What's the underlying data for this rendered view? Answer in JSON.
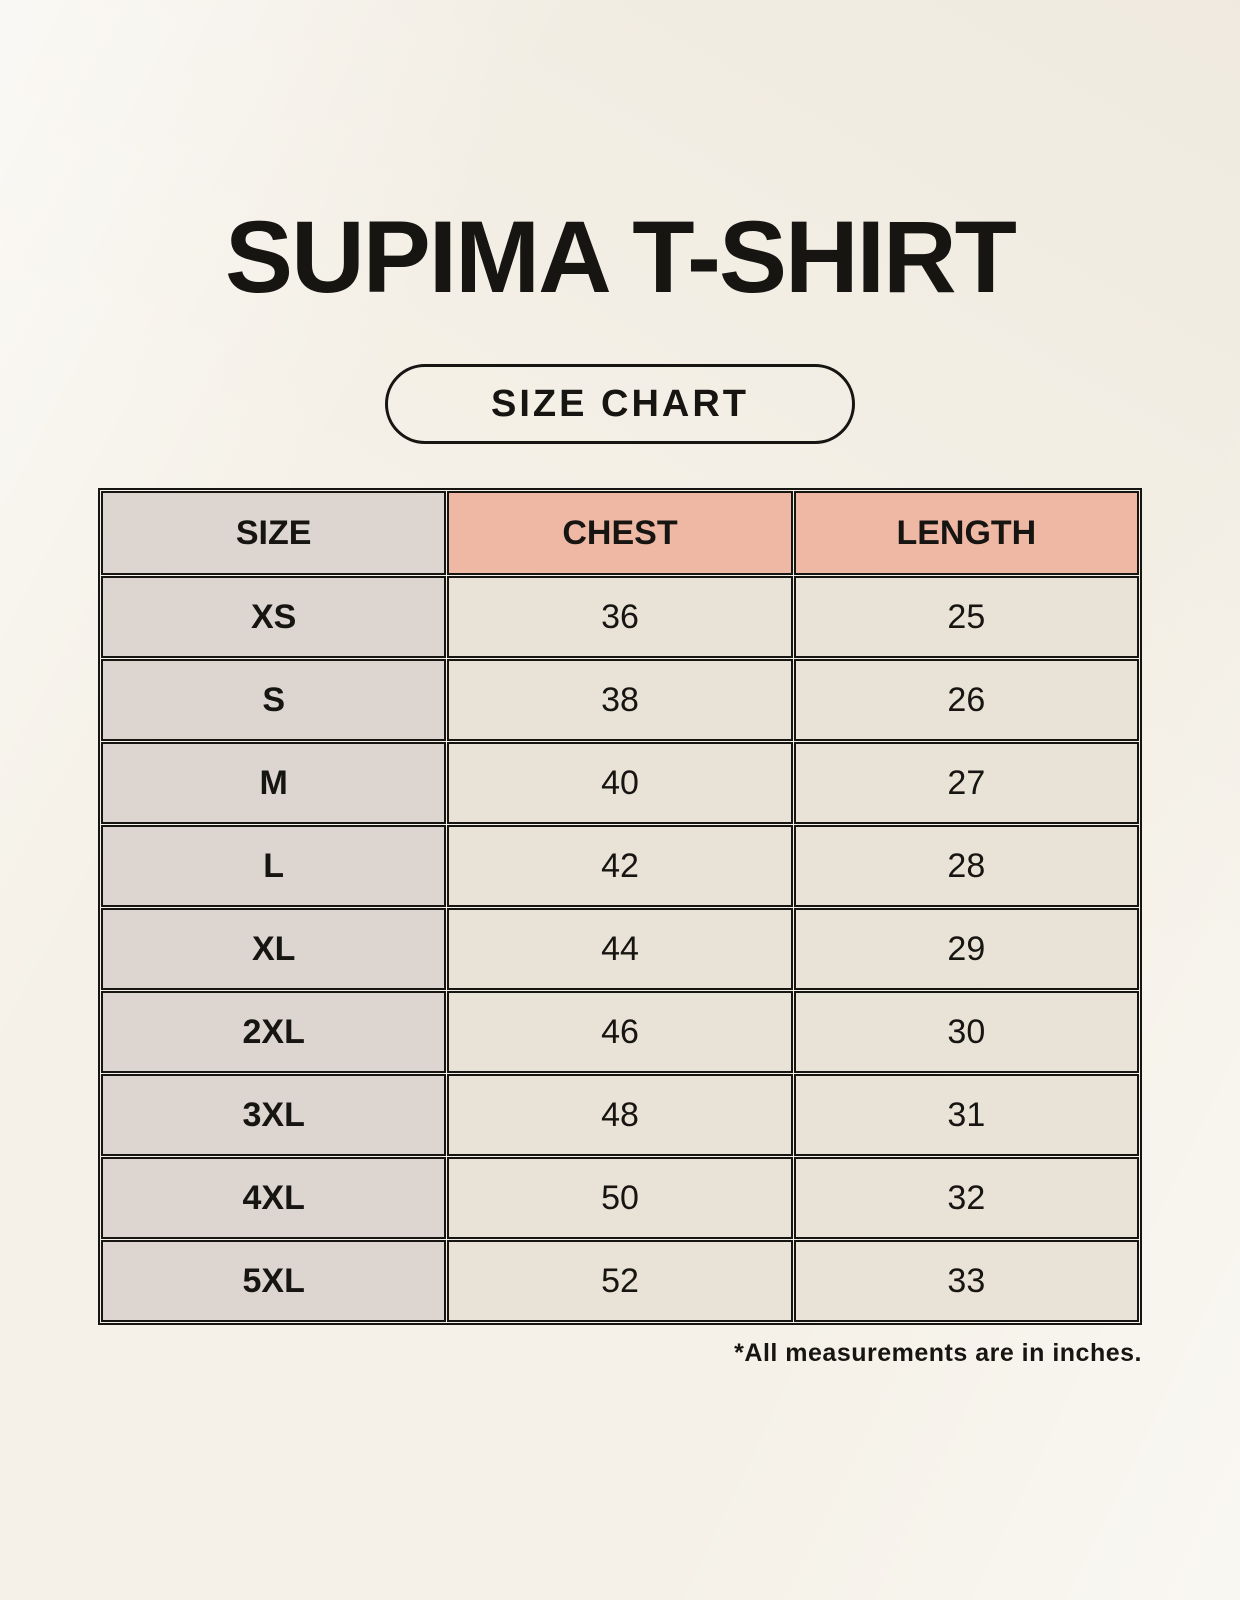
{
  "page": {
    "title": "SUPIMA T-SHIRT",
    "badge_label": "SIZE CHART",
    "note": "*All measurements are in inches."
  },
  "colors": {
    "background": "#f5f1e8",
    "accent_header": "#efb8a5",
    "size_column": "#dcd5d0",
    "data_cell": "#e9e2d7",
    "ink": "#171512"
  },
  "chart_data": {
    "type": "table",
    "title": "SUPIMA T-SHIRT",
    "subtitle": "SIZE CHART",
    "columns": [
      "SIZE",
      "CHEST",
      "LENGTH"
    ],
    "rows": [
      [
        "XS",
        "36",
        "25"
      ],
      [
        "S",
        "38",
        "26"
      ],
      [
        "M",
        "40",
        "27"
      ],
      [
        "L",
        "42",
        "28"
      ],
      [
        "XL",
        "44",
        "29"
      ],
      [
        "2XL",
        "46",
        "30"
      ],
      [
        "3XL",
        "48",
        "31"
      ],
      [
        "4XL",
        "50",
        "32"
      ],
      [
        "5XL",
        "52",
        "33"
      ]
    ],
    "units": "inches",
    "footnote": "*All measurements are in inches."
  }
}
